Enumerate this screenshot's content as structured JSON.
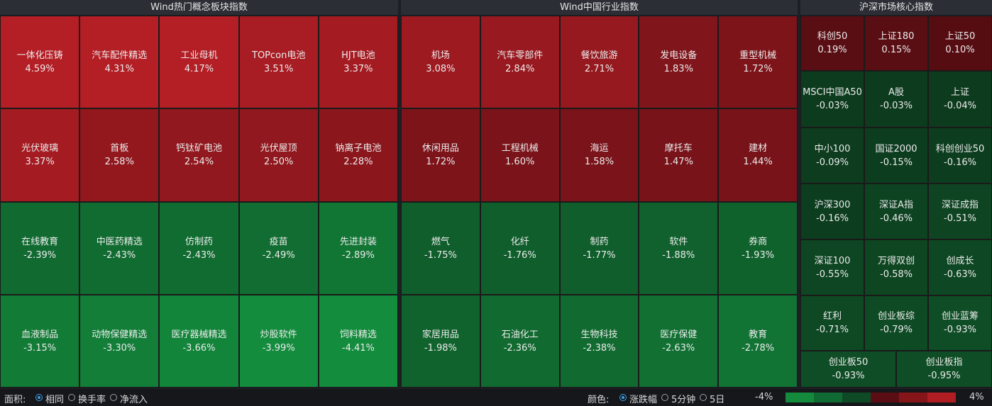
{
  "panels": [
    {
      "title": "Wind热门概念板块指数",
      "rows": [
        [
          {
            "name": "一体化压铸",
            "change": "4.59%"
          },
          {
            "name": "汽车配件精选",
            "change": "4.31%"
          },
          {
            "name": "工业母机",
            "change": "4.17%"
          },
          {
            "name": "TOPcon电池",
            "change": "3.51%"
          },
          {
            "name": "HJT电池",
            "change": "3.37%"
          }
        ],
        [
          {
            "name": "光伏玻璃",
            "change": "3.37%"
          },
          {
            "name": "首板",
            "change": "2.58%"
          },
          {
            "name": "钙钛矿电池",
            "change": "2.54%"
          },
          {
            "name": "光伏屋顶",
            "change": "2.50%"
          },
          {
            "name": "钠离子电池",
            "change": "2.28%"
          }
        ],
        [
          {
            "name": "在线教育",
            "change": "-2.39%"
          },
          {
            "name": "中医药精选",
            "change": "-2.43%"
          },
          {
            "name": "仿制药",
            "change": "-2.43%"
          },
          {
            "name": "疫苗",
            "change": "-2.49%"
          },
          {
            "name": "先进封装",
            "change": "-2.89%"
          }
        ],
        [
          {
            "name": "血液制品",
            "change": "-3.15%"
          },
          {
            "name": "动物保健精选",
            "change": "-3.30%"
          },
          {
            "name": "医疗器械精选",
            "change": "-3.66%"
          },
          {
            "name": "炒股软件",
            "change": "-3.99%"
          },
          {
            "name": "饲料精选",
            "change": "-4.41%"
          }
        ]
      ]
    },
    {
      "title": "Wind中国行业指数",
      "rows": [
        [
          {
            "name": "机场",
            "change": "3.08%"
          },
          {
            "name": "汽车零部件",
            "change": "2.84%"
          },
          {
            "name": "餐饮旅游",
            "change": "2.71%"
          },
          {
            "name": "发电设备",
            "change": "1.83%"
          },
          {
            "name": "重型机械",
            "change": "1.72%"
          }
        ],
        [
          {
            "name": "休闲用品",
            "change": "1.72%"
          },
          {
            "name": "工程机械",
            "change": "1.60%"
          },
          {
            "name": "海运",
            "change": "1.58%"
          },
          {
            "name": "摩托车",
            "change": "1.47%"
          },
          {
            "name": "建材",
            "change": "1.44%"
          }
        ],
        [
          {
            "name": "燃气",
            "change": "-1.75%"
          },
          {
            "name": "化纤",
            "change": "-1.76%"
          },
          {
            "name": "制药",
            "change": "-1.77%"
          },
          {
            "name": "软件",
            "change": "-1.88%"
          },
          {
            "name": "券商",
            "change": "-1.93%"
          }
        ],
        [
          {
            "name": "家居用品",
            "change": "-1.98%"
          },
          {
            "name": "石油化工",
            "change": "-2.36%"
          },
          {
            "name": "生物科技",
            "change": "-2.38%"
          },
          {
            "name": "医疗保健",
            "change": "-2.63%"
          },
          {
            "name": "教育",
            "change": "-2.78%"
          }
        ]
      ]
    },
    {
      "title": "沪深市场核心指数",
      "rows": [
        [
          {
            "name": "科创50",
            "change": "0.19%"
          },
          {
            "name": "上证180",
            "change": "0.15%"
          },
          {
            "name": "上证50",
            "change": "0.10%"
          }
        ],
        [
          {
            "name": "MSCI中国A50",
            "change": "-0.03%"
          },
          {
            "name": "A股",
            "change": "-0.03%"
          },
          {
            "name": "上证",
            "change": "-0.04%"
          }
        ],
        [
          {
            "name": "中小100",
            "change": "-0.09%"
          },
          {
            "name": "国证2000",
            "change": "-0.15%"
          },
          {
            "name": "科创创业50",
            "change": "-0.16%"
          }
        ],
        [
          {
            "name": "沪深300",
            "change": "-0.16%"
          },
          {
            "name": "深证A指",
            "change": "-0.46%"
          },
          {
            "name": "深证成指",
            "change": "-0.51%"
          }
        ],
        [
          {
            "name": "深证100",
            "change": "-0.55%"
          },
          {
            "name": "万得双创",
            "change": "-0.58%"
          },
          {
            "name": "创成长",
            "change": "-0.63%"
          }
        ],
        [
          {
            "name": "红利",
            "change": "-0.71%"
          },
          {
            "name": "创业板综",
            "change": "-0.79%"
          },
          {
            "name": "创业蓝筹",
            "change": "-0.93%"
          }
        ],
        [
          {
            "name": "创业板50",
            "change": "-0.93%"
          },
          {
            "name": "创业板指",
            "change": "-0.95%"
          }
        ]
      ]
    }
  ],
  "footer": {
    "area_label": "面积:",
    "area_options": [
      "相同",
      "换手率",
      "净流入"
    ],
    "area_selected": 0,
    "color_label": "颜色:",
    "color_options": [
      "涨跌幅",
      "5分钟",
      "5日"
    ],
    "color_selected": 0,
    "scale_min": "-4%",
    "scale_max": "4%"
  }
}
